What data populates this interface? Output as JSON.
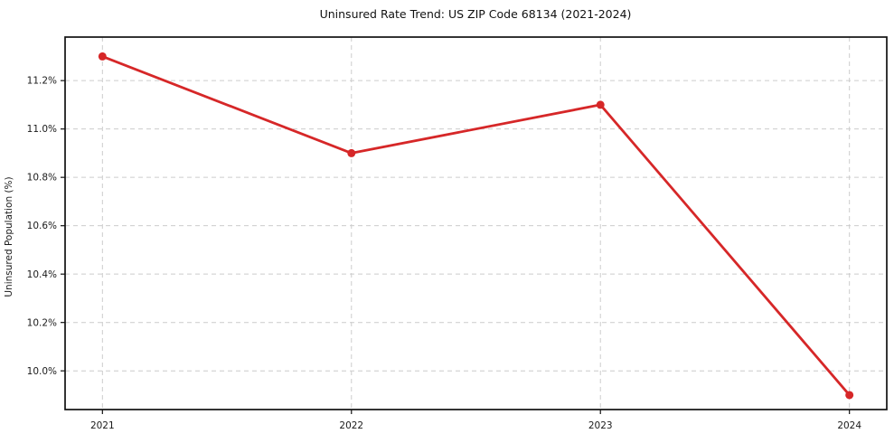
{
  "chart_data": {
    "type": "line",
    "title": "Uninsured Rate Trend: US ZIP Code 68134 (2021-2024)",
    "xlabel": "",
    "ylabel": "Uninsured Population (%)",
    "x": [
      2021,
      2022,
      2023,
      2024
    ],
    "values": [
      11.3,
      10.9,
      11.1,
      9.9
    ],
    "x_tick_labels": [
      "2021",
      "2022",
      "2023",
      "2024"
    ],
    "y_tick_values": [
      10.0,
      10.2,
      10.4,
      10.6,
      10.8,
      11.0,
      11.2
    ],
    "y_tick_labels": [
      "10.0%",
      "10.2%",
      "10.4%",
      "10.6%",
      "10.8%",
      "11.0%",
      "11.2%"
    ],
    "xlim": [
      2020.85,
      2024.15
    ],
    "ylim": [
      9.84,
      11.38
    ],
    "grid": true,
    "grid_style": "dashed",
    "legend_position": "none",
    "line_color": "#d62728",
    "marker": "circle",
    "grid_color": "#cccccc",
    "axis_color": "#111111"
  }
}
